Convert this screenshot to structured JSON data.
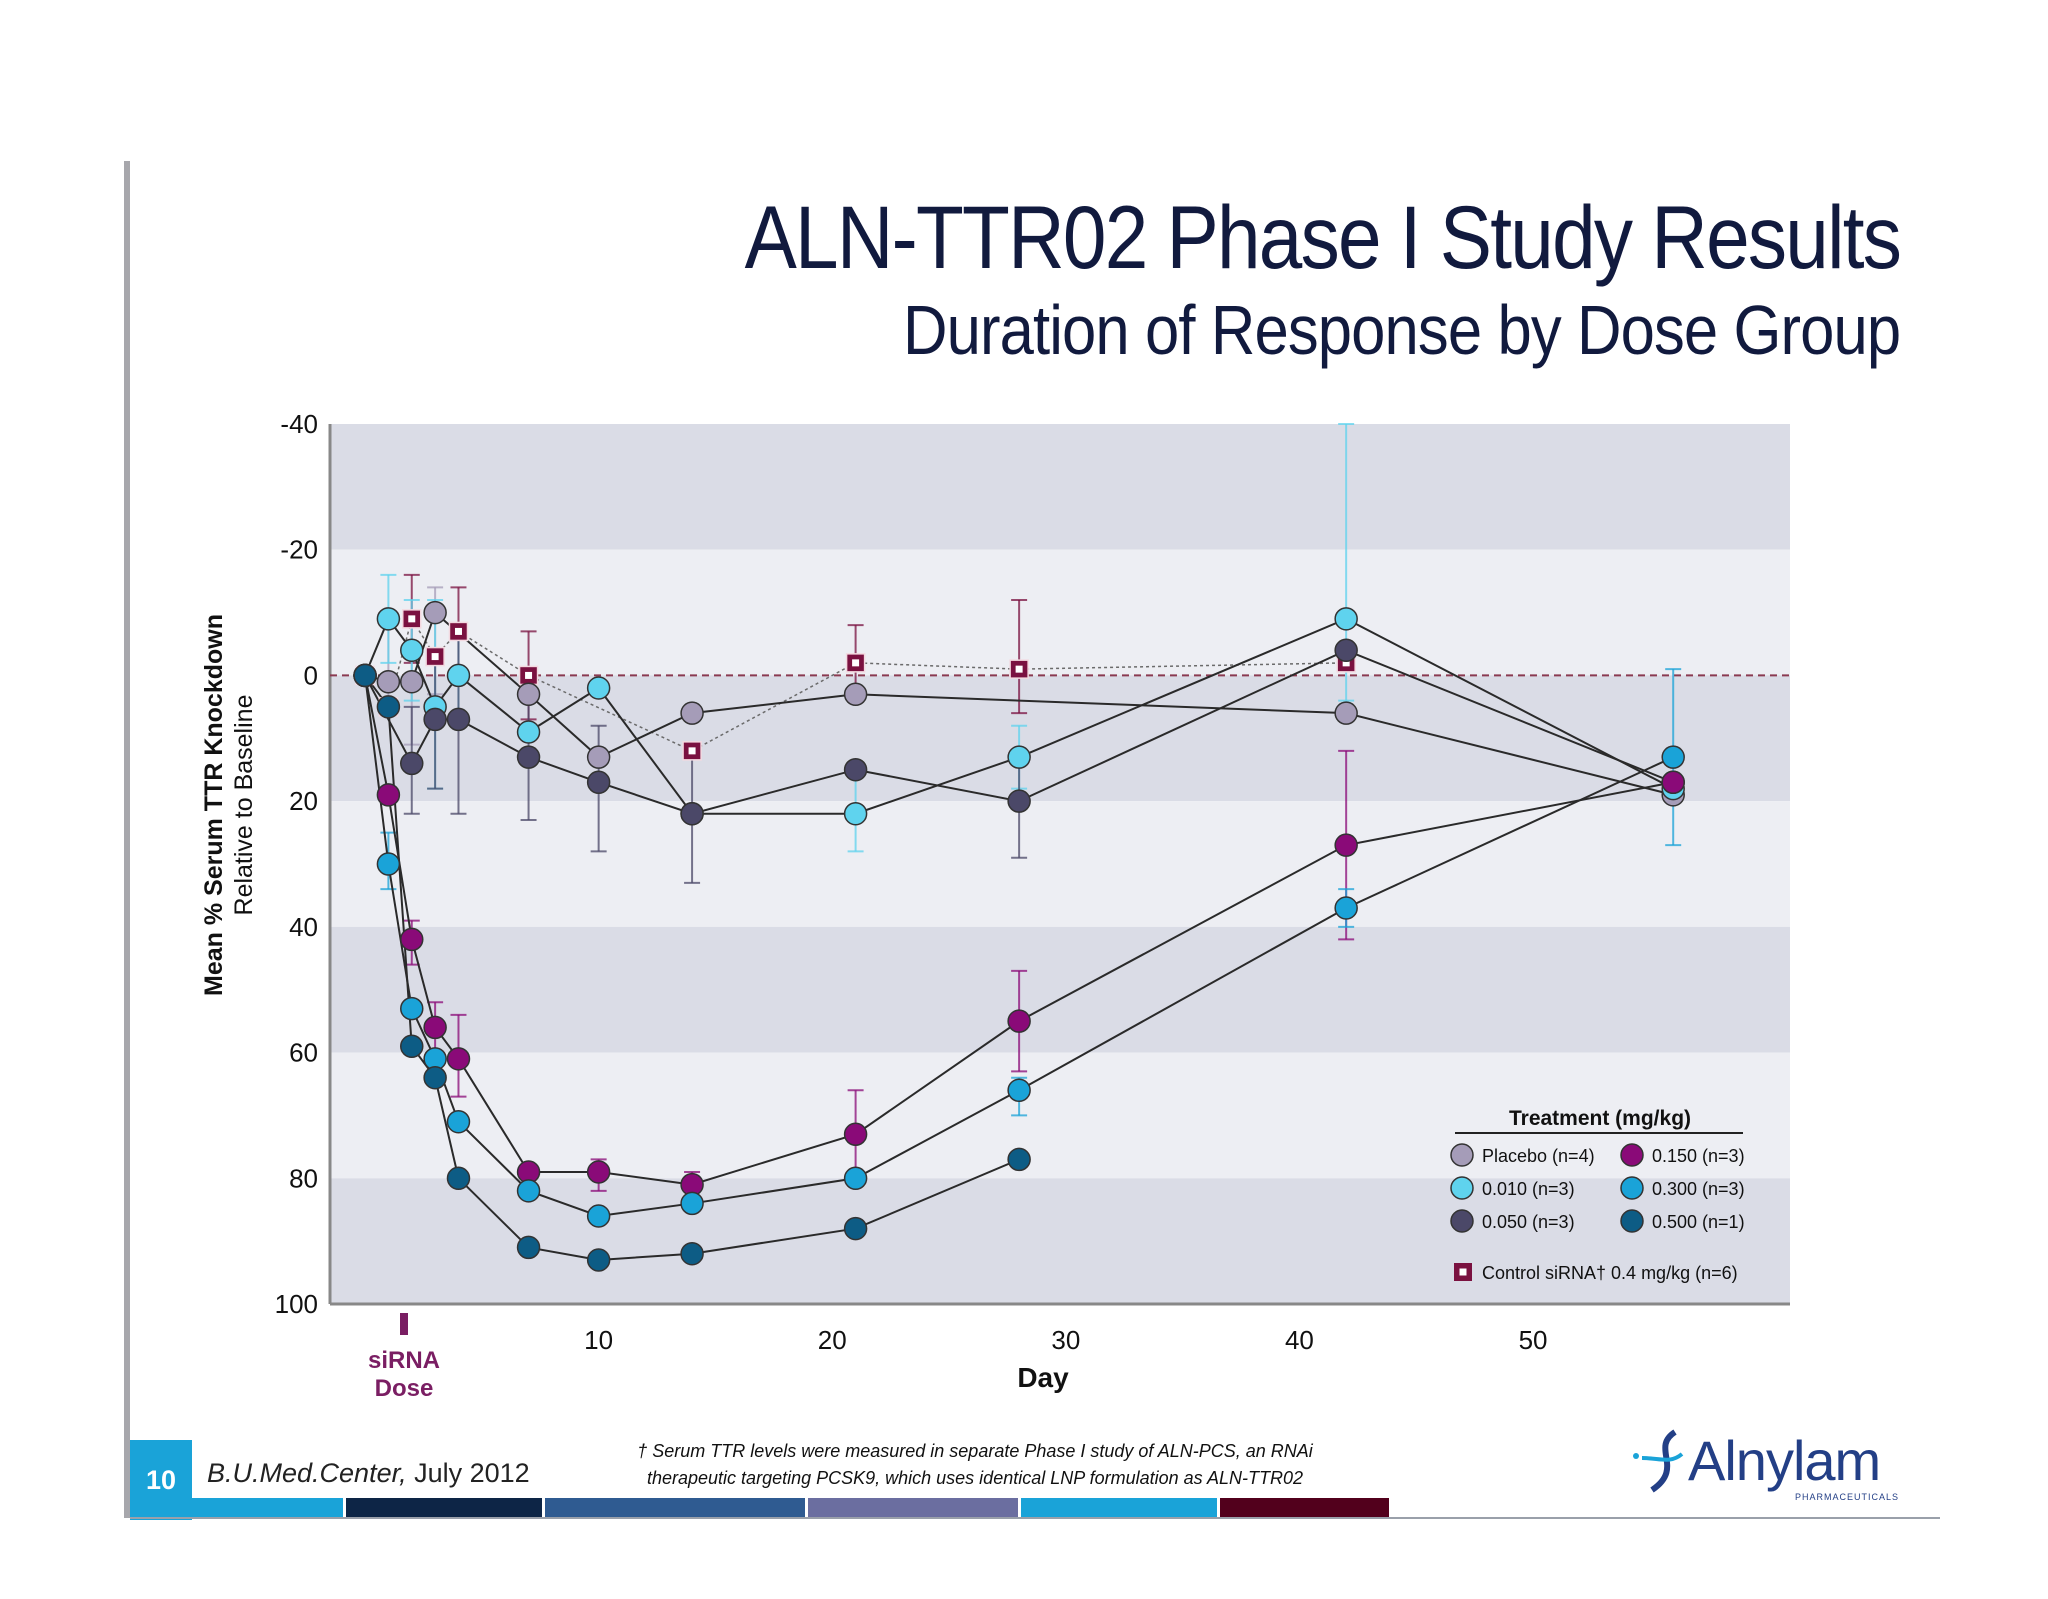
{
  "title": "ALN-TTR02 Phase I Study Results",
  "subtitle": "Duration of Response by Dose Group",
  "footer": {
    "slide_number": "10",
    "org": "B.U.Med.Center,",
    "date": "July 2012",
    "footnote_line1": "† Serum TTR levels were measured in separate Phase I study of ALN-PCS, an RNAi",
    "footnote_line2": "therapeutic targeting PCSK9, which uses identical LNP formulation as ALN-TTR02",
    "bar_colors": [
      "#1aa3d8",
      "#0d2546",
      "#2f5b91",
      "#6b6ea0",
      "#1aa3d8",
      "#52001c"
    ]
  },
  "logo": {
    "name": "Alnylam",
    "registered": "®",
    "tagline": "PHARMACEUTICALS",
    "color": "#233f86"
  },
  "dose_marker": {
    "line1": "siRNA",
    "line2": "Dose",
    "color": "#7a1e63"
  },
  "chart_data": {
    "type": "line",
    "title": "ALN-TTR02 Phase I Study Results",
    "subtitle": "Duration of Response by Dose Group",
    "ylabel": "Mean % Serum TTR Knockdown",
    "ylabel2": "Relative to Baseline",
    "xlabel": "Day",
    "xlim": [
      -1.5,
      61
    ],
    "ylim": [
      100,
      -40
    ],
    "y_inverted": true,
    "xticks": [
      10,
      20,
      30,
      40,
      50
    ],
    "yticks": [
      -40,
      -20,
      0,
      20,
      40,
      60,
      80,
      100
    ],
    "grid": "alternating horizontal bands",
    "reference_line_y": 0,
    "legend": {
      "title": "Treatment (mg/kg)",
      "position": "bottom-right",
      "footnote_label": "Control siRNA† 0.4 mg/kg (n=6)"
    },
    "series": [
      {
        "name": "Placebo (n=4)",
        "color": "#a59cb8",
        "x": [
          0,
          1,
          2,
          3,
          7,
          10,
          14,
          21,
          42,
          56
        ],
        "y": [
          0,
          1,
          1,
          -10,
          3,
          13,
          6,
          3,
          6,
          19
        ],
        "err_x": [
          1,
          2,
          3
        ],
        "err_lo": [
          -9,
          -8,
          -14
        ],
        "err_hi": [
          6,
          11,
          3
        ]
      },
      {
        "name": "0.150 (n=3)",
        "color": "#8a0a78",
        "x": [
          0,
          1,
          2,
          3,
          4,
          7,
          10,
          14,
          21,
          28,
          42,
          56
        ],
        "y": [
          0,
          19,
          42,
          56,
          61,
          79,
          79,
          81,
          73,
          55,
          27,
          17
        ],
        "err_x": [
          2,
          3,
          4,
          10,
          14,
          21,
          28,
          42
        ],
        "err_lo": [
          39,
          52,
          54,
          77,
          79,
          66,
          47,
          12
        ],
        "err_hi": [
          46,
          60,
          67,
          82,
          83,
          80,
          63,
          42
        ]
      },
      {
        "name": "0.010 (n=3)",
        "color": "#5fd3ee",
        "x": [
          0,
          1,
          2,
          3,
          4,
          7,
          10,
          14,
          21,
          28,
          42,
          56
        ],
        "y": [
          0,
          -9,
          -4,
          5,
          0,
          9,
          2,
          22,
          22,
          13,
          -9,
          18
        ],
        "err_x": [
          1,
          2,
          3,
          4,
          21,
          28,
          42
        ],
        "err_lo": [
          -16,
          -12,
          -12,
          -8,
          15,
          8,
          -40
        ],
        "err_hi": [
          -2,
          4,
          18,
          8,
          28,
          18,
          4
        ]
      },
      {
        "name": "0.300 (n=3)",
        "color": "#1aa3d8",
        "x": [
          0,
          1,
          2,
          3,
          4,
          7,
          10,
          14,
          21,
          28,
          42,
          56
        ],
        "y": [
          0,
          30,
          53,
          61,
          71,
          82,
          86,
          84,
          80,
          66,
          37,
          13
        ],
        "err_x": [
          1,
          28,
          42,
          56
        ],
        "err_lo": [
          25,
          64,
          34,
          -1
        ],
        "err_hi": [
          34,
          70,
          40,
          27
        ]
      },
      {
        "name": "0.050 (n=3)",
        "color": "#4b4868",
        "x": [
          0,
          2,
          3,
          4,
          7,
          10,
          14,
          21,
          28,
          42,
          56
        ],
        "y": [
          0,
          14,
          7,
          7,
          13,
          17,
          22,
          15,
          20,
          -4,
          17
        ],
        "err_x": [
          2,
          3,
          4,
          7,
          10,
          14,
          28
        ],
        "err_lo": [
          5,
          -2,
          -8,
          2,
          8,
          12,
          12
        ],
        "err_hi": [
          22,
          18,
          22,
          23,
          28,
          33,
          29
        ]
      },
      {
        "name": "0.500 (n=1)",
        "color": "#0d5c85",
        "x": [
          0,
          1,
          2,
          3,
          4,
          7,
          10,
          14,
          21,
          28
        ],
        "y": [
          0,
          5,
          59,
          64,
          80,
          91,
          93,
          92,
          88,
          77
        ],
        "err_x": [],
        "err_lo": [],
        "err_hi": []
      },
      {
        "name": "Control siRNA† 0.4 mg/kg (n=6)",
        "color": "#7a1140",
        "marker": "square",
        "dashed": true,
        "x": [
          0,
          1,
          2,
          3,
          4,
          7,
          14,
          21,
          28,
          42
        ],
        "y": [
          0,
          5,
          -9,
          -3,
          -7,
          0,
          12,
          -2,
          -1,
          -2
        ],
        "err_x": [
          2,
          4,
          7,
          21,
          28
        ],
        "err_lo": [
          -16,
          -14,
          -7,
          -8,
          -12
        ],
        "err_hi": [
          -2,
          0,
          7,
          3,
          6
        ]
      }
    ]
  }
}
